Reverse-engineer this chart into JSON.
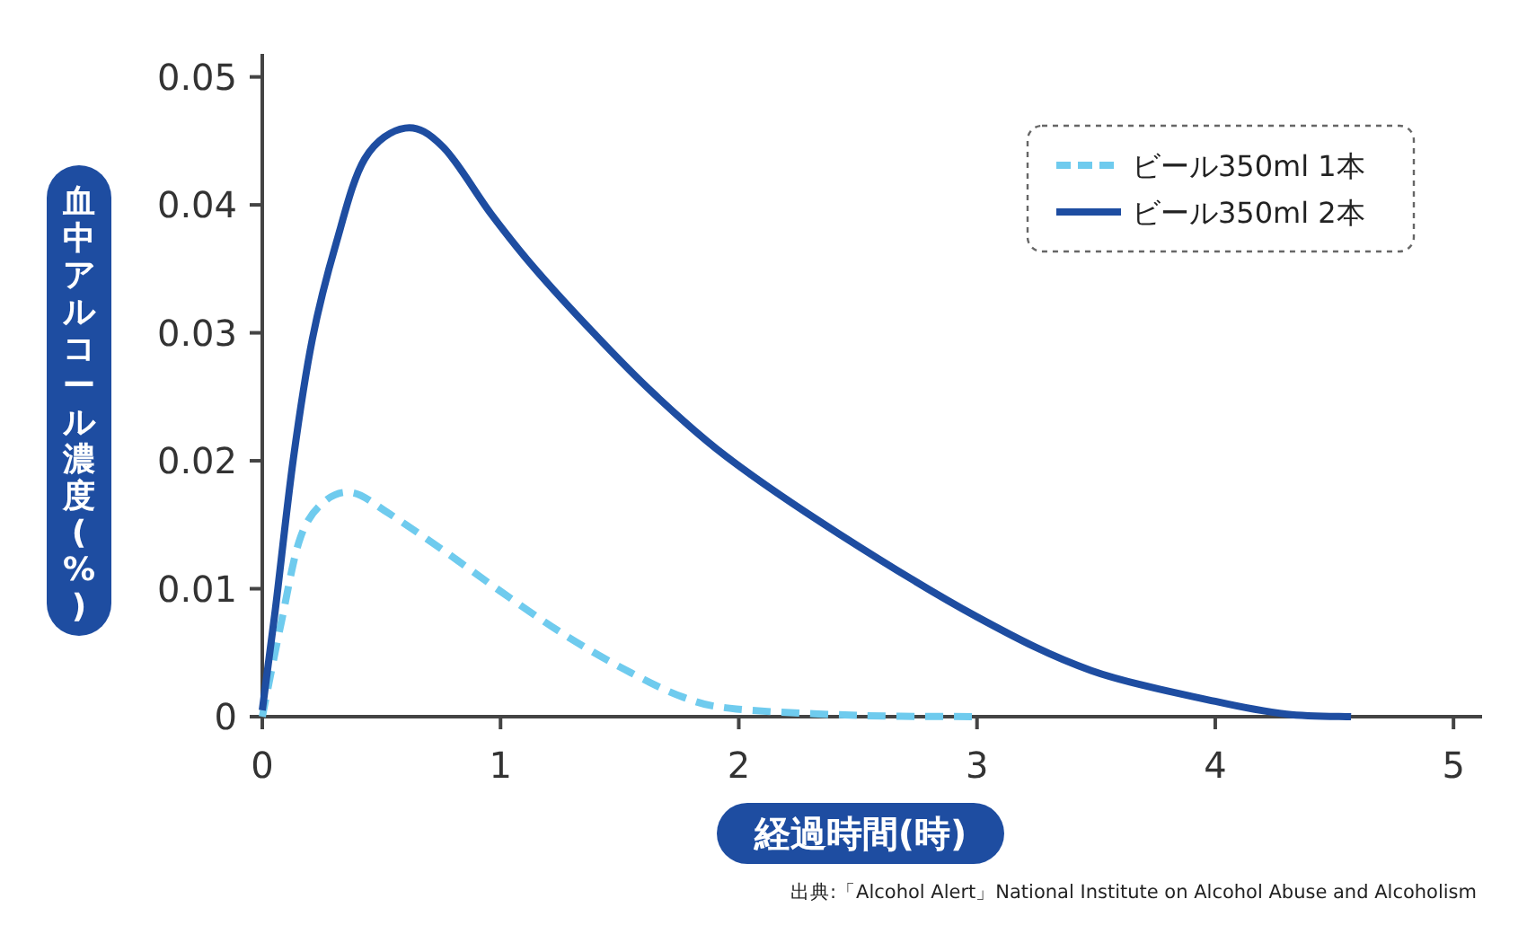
{
  "chart_data": {
    "type": "line",
    "xlabel": "経過時間(時)",
    "ylabel": "血中アルコール濃度(%)",
    "annotations": [
      "出典:「Alcohol Alert」National Institute on Alcohol Abuse and Alcoholism"
    ],
    "xlim": [
      0,
      5.12
    ],
    "ylim": [
      0,
      0.0518
    ],
    "xticks": [
      0,
      1,
      2,
      3,
      4,
      5
    ],
    "yticks": [
      0,
      0.01,
      0.02,
      0.03,
      0.04,
      0.05
    ],
    "grid": false,
    "legend": "top right",
    "marker": "none",
    "series": [
      {
        "name": "ビール350ml 1本",
        "color": "#6fcbee",
        "line_style": "dashed",
        "x": [
          0,
          0.08,
          0.16,
          0.26,
          0.38,
          0.53,
          0.76,
          1.0,
          1.26,
          1.52,
          1.77,
          1.99,
          2.5,
          3.0
        ],
        "values": [
          0,
          0.0074,
          0.014,
          0.0168,
          0.0175,
          0.0159,
          0.013,
          0.0098,
          0.0065,
          0.0037,
          0.0015,
          0.0006,
          0.0001,
          0
        ]
      },
      {
        "name": "ビール350ml 2本",
        "color": "#1e4da1",
        "line_style": "solid",
        "x": [
          0,
          0.055,
          0.13,
          0.21,
          0.31,
          0.43,
          0.6,
          0.76,
          0.96,
          1.14,
          1.39,
          1.64,
          1.95,
          2.42,
          3.0,
          3.48,
          4.0,
          4.3,
          4.57
        ],
        "values": [
          0.0005,
          0.0084,
          0.0201,
          0.0295,
          0.037,
          0.0436,
          0.046,
          0.0445,
          0.0393,
          0.0351,
          0.03,
          0.0253,
          0.0203,
          0.0143,
          0.0078,
          0.0036,
          0.0012,
          0.0002,
          0
        ]
      }
    ]
  }
}
